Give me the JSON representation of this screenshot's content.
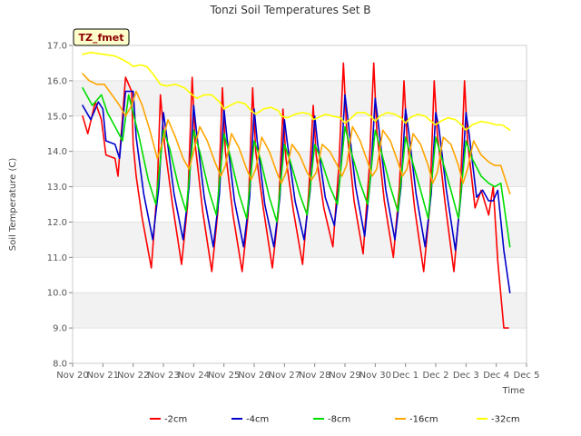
{
  "chart_data": {
    "type": "line",
    "title": "Tonzi Soil Temperatures Set B",
    "xlabel": "Time",
    "ylabel": "Soil Temperature (C)",
    "site_label": "TZ_fmet",
    "xlim": [
      0,
      15
    ],
    "ylim": [
      8.0,
      17.0
    ],
    "grid": "horizontal bands",
    "legend_position": "bottom-center",
    "xticks": [
      {
        "x": 0,
        "label": "Nov 20"
      },
      {
        "x": 1,
        "label": "Nov 21"
      },
      {
        "x": 2,
        "label": "Nov 22"
      },
      {
        "x": 3,
        "label": "Nov 23"
      },
      {
        "x": 4,
        "label": "Nov 24"
      },
      {
        "x": 5,
        "label": "Nov 25"
      },
      {
        "x": 6,
        "label": "Nov 26"
      },
      {
        "x": 7,
        "label": "Nov 27"
      },
      {
        "x": 8,
        "label": "Nov 28"
      },
      {
        "x": 9,
        "label": "Nov 29"
      },
      {
        "x": 10,
        "label": "Nov 30"
      },
      {
        "x": 11,
        "label": "Dec 1"
      },
      {
        "x": 12,
        "label": "Dec 2"
      },
      {
        "x": 13,
        "label": "Dec 3"
      },
      {
        "x": 14,
        "label": "Dec 4"
      },
      {
        "x": 15,
        "label": "Dec 5"
      }
    ],
    "yticks": [
      {
        "y": 8.0,
        "label": "8.0"
      },
      {
        "y": 9.0,
        "label": "9.0"
      },
      {
        "y": 10.0,
        "label": "10.0"
      },
      {
        "y": 11.0,
        "label": "11.0"
      },
      {
        "y": 12.0,
        "label": "12.0"
      },
      {
        "y": 13.0,
        "label": "13.0"
      },
      {
        "y": 14.0,
        "label": "14.0"
      },
      {
        "y": 15.0,
        "label": "15.0"
      },
      {
        "y": 16.0,
        "label": "16.0"
      },
      {
        "y": 17.0,
        "label": "17.0"
      }
    ],
    "series": [
      {
        "name": "-2cm",
        "color": "#ff0000",
        "x": [
          0.33,
          0.5,
          0.75,
          0.95,
          1.1,
          1.4,
          1.5,
          1.75,
          1.95,
          2.0,
          2.1,
          2.3,
          2.6,
          2.8,
          2.9,
          3.05,
          3.3,
          3.6,
          3.8,
          3.95,
          4.05,
          4.3,
          4.6,
          4.8,
          4.95,
          5.05,
          5.3,
          5.6,
          5.8,
          5.95,
          6.05,
          6.3,
          6.6,
          6.8,
          6.95,
          7.05,
          7.3,
          7.6,
          7.8,
          7.95,
          8.05,
          8.3,
          8.6,
          8.8,
          8.95,
          9.05,
          9.3,
          9.6,
          9.8,
          9.95,
          10.05,
          10.3,
          10.6,
          10.8,
          10.95,
          11.05,
          11.3,
          11.6,
          11.8,
          11.95,
          12.05,
          12.3,
          12.6,
          12.8,
          12.95,
          13.05,
          13.3,
          13.5,
          13.75,
          13.9,
          14.05,
          14.25,
          14.4
        ],
        "values": [
          15.0,
          14.5,
          15.4,
          14.9,
          13.9,
          13.8,
          13.3,
          16.1,
          15.7,
          14.2,
          13.3,
          12.1,
          10.7,
          13.0,
          15.6,
          14.1,
          12.5,
          10.8,
          12.5,
          16.1,
          14.2,
          12.3,
          10.6,
          12.3,
          15.8,
          14.0,
          12.2,
          10.6,
          12.2,
          15.8,
          14.0,
          12.4,
          10.7,
          12.3,
          15.2,
          13.8,
          12.3,
          10.8,
          12.8,
          15.3,
          13.9,
          12.4,
          11.3,
          13.6,
          16.5,
          14.7,
          12.6,
          11.1,
          13.5,
          16.5,
          14.6,
          12.6,
          11.0,
          13.0,
          16.0,
          14.4,
          12.4,
          10.6,
          12.4,
          16.0,
          14.5,
          12.6,
          10.6,
          12.6,
          16.0,
          14.3,
          12.4,
          12.9,
          12.2,
          13.0,
          10.9,
          9.0,
          9.0
        ]
      },
      {
        "name": "-4cm",
        "color": "#0000cc",
        "x": [
          0.33,
          0.6,
          0.85,
          1.0,
          1.1,
          1.4,
          1.55,
          1.75,
          2.0,
          2.1,
          2.35,
          2.65,
          2.85,
          3.0,
          3.1,
          3.35,
          3.65,
          3.85,
          4.0,
          4.1,
          4.35,
          4.65,
          4.85,
          5.0,
          5.1,
          5.35,
          5.65,
          5.85,
          6.0,
          6.1,
          6.35,
          6.65,
          6.85,
          7.0,
          7.1,
          7.35,
          7.65,
          7.85,
          8.0,
          8.1,
          8.35,
          8.65,
          8.85,
          9.0,
          9.1,
          9.35,
          9.65,
          9.85,
          10.0,
          10.1,
          10.35,
          10.65,
          10.85,
          11.0,
          11.1,
          11.35,
          11.65,
          11.85,
          12.0,
          12.1,
          12.35,
          12.65,
          12.85,
          13.0,
          13.1,
          13.35,
          13.55,
          13.75,
          13.9,
          14.05,
          14.25,
          14.45
        ],
        "values": [
          15.3,
          14.9,
          15.4,
          15.2,
          14.3,
          14.2,
          13.8,
          15.7,
          15.7,
          14.4,
          12.8,
          11.5,
          13.0,
          15.1,
          14.5,
          12.8,
          11.5,
          13.0,
          15.3,
          14.5,
          12.7,
          11.3,
          12.8,
          15.2,
          14.4,
          12.6,
          11.3,
          12.7,
          15.2,
          14.3,
          12.5,
          11.3,
          12.7,
          14.9,
          14.2,
          12.6,
          11.5,
          12.9,
          15.0,
          14.2,
          12.7,
          11.9,
          13.4,
          15.6,
          14.9,
          13.0,
          11.6,
          13.3,
          15.5,
          14.8,
          12.9,
          11.5,
          13.0,
          15.2,
          14.6,
          12.8,
          11.3,
          12.8,
          15.1,
          14.7,
          12.9,
          11.2,
          12.9,
          15.1,
          14.5,
          12.7,
          12.9,
          12.6,
          12.6,
          12.9,
          11.2,
          10.0
        ]
      },
      {
        "name": "-8cm",
        "color": "#00dd00",
        "x": [
          0.33,
          0.65,
          0.95,
          1.15,
          1.4,
          1.65,
          1.85,
          2.2,
          2.5,
          2.75,
          3.0,
          3.2,
          3.5,
          3.75,
          4.0,
          4.2,
          4.5,
          4.75,
          5.0,
          5.2,
          5.5,
          5.75,
          6.0,
          6.2,
          6.5,
          6.75,
          7.0,
          7.2,
          7.5,
          7.75,
          8.0,
          8.2,
          8.5,
          8.75,
          9.0,
          9.2,
          9.5,
          9.75,
          10.0,
          10.2,
          10.5,
          10.75,
          11.0,
          11.2,
          11.5,
          11.75,
          12.0,
          12.2,
          12.5,
          12.75,
          13.0,
          13.2,
          13.5,
          13.75,
          13.95,
          14.15,
          14.45
        ],
        "values": [
          15.8,
          15.3,
          15.6,
          15.1,
          14.7,
          14.3,
          15.6,
          14.4,
          13.2,
          12.5,
          14.6,
          14.1,
          13.0,
          12.3,
          14.6,
          14.0,
          12.9,
          12.2,
          14.5,
          13.9,
          12.8,
          12.1,
          14.3,
          13.8,
          12.7,
          12.0,
          14.2,
          13.7,
          12.8,
          12.2,
          14.2,
          13.8,
          13.0,
          12.5,
          14.7,
          14.0,
          13.1,
          12.5,
          14.6,
          14.0,
          13.0,
          12.3,
          14.4,
          13.8,
          12.9,
          12.1,
          14.4,
          13.8,
          12.9,
          12.1,
          14.3,
          13.8,
          13.3,
          13.1,
          13.0,
          13.1,
          11.3
        ]
      },
      {
        "name": "-16cm",
        "color": "#ffa500",
        "x": [
          0.33,
          0.55,
          0.8,
          1.05,
          1.3,
          1.55,
          1.75,
          1.95,
          2.1,
          2.3,
          2.55,
          2.8,
          2.95,
          3.15,
          3.4,
          3.65,
          3.85,
          4.0,
          4.2,
          4.45,
          4.7,
          4.9,
          5.05,
          5.25,
          5.5,
          5.75,
          5.9,
          6.05,
          6.25,
          6.5,
          6.75,
          6.9,
          7.05,
          7.25,
          7.5,
          7.75,
          7.9,
          8.05,
          8.25,
          8.5,
          8.75,
          8.9,
          9.05,
          9.25,
          9.5,
          9.75,
          9.9,
          10.05,
          10.25,
          10.5,
          10.75,
          10.9,
          11.05,
          11.25,
          11.5,
          11.75,
          11.9,
          12.05,
          12.25,
          12.5,
          12.75,
          12.9,
          13.05,
          13.25,
          13.5,
          13.75,
          13.95,
          14.15,
          14.45
        ],
        "values": [
          16.2,
          16.0,
          15.9,
          15.9,
          15.6,
          15.3,
          15.0,
          15.3,
          15.7,
          15.3,
          14.6,
          13.8,
          14.2,
          14.9,
          14.4,
          13.8,
          13.5,
          14.0,
          14.7,
          14.3,
          13.7,
          13.3,
          13.6,
          14.5,
          14.1,
          13.5,
          13.2,
          13.5,
          14.4,
          14.0,
          13.4,
          13.1,
          13.4,
          14.2,
          13.9,
          13.4,
          13.2,
          13.4,
          14.2,
          14.0,
          13.6,
          13.3,
          13.6,
          14.7,
          14.3,
          13.7,
          13.3,
          13.5,
          14.6,
          14.3,
          13.7,
          13.3,
          13.5,
          14.5,
          14.2,
          13.6,
          13.1,
          13.4,
          14.4,
          14.2,
          13.6,
          13.1,
          13.5,
          14.3,
          13.9,
          13.7,
          13.6,
          13.6,
          12.8
        ]
      },
      {
        "name": "-32cm",
        "color": "#ffff00",
        "x": [
          0.33,
          0.6,
          1.0,
          1.4,
          1.65,
          1.85,
          2.0,
          2.25,
          2.45,
          2.65,
          2.9,
          3.1,
          3.4,
          3.7,
          3.95,
          4.1,
          4.35,
          4.6,
          4.85,
          5.0,
          5.2,
          5.45,
          5.7,
          5.9,
          6.05,
          6.3,
          6.55,
          6.8,
          6.9,
          7.1,
          7.35,
          7.6,
          7.85,
          7.95,
          8.1,
          8.35,
          8.6,
          8.85,
          9.0,
          9.15,
          9.4,
          9.65,
          9.85,
          10.0,
          10.15,
          10.4,
          10.65,
          10.85,
          11.0,
          11.15,
          11.4,
          11.65,
          11.85,
          12.0,
          12.15,
          12.4,
          12.65,
          12.85,
          13.0,
          13.2,
          13.5,
          13.8,
          14.0,
          14.2,
          14.45
        ],
        "values": [
          16.75,
          16.8,
          16.75,
          16.7,
          16.6,
          16.5,
          16.4,
          16.45,
          16.4,
          16.2,
          15.9,
          15.85,
          15.9,
          15.8,
          15.6,
          15.5,
          15.6,
          15.6,
          15.4,
          15.2,
          15.3,
          15.4,
          15.35,
          15.15,
          15.05,
          15.2,
          15.25,
          15.15,
          15.0,
          14.95,
          15.05,
          15.1,
          15.05,
          14.9,
          14.95,
          15.05,
          15.0,
          14.95,
          14.8,
          14.9,
          15.1,
          15.1,
          15.0,
          14.85,
          15.0,
          15.1,
          15.05,
          14.95,
          14.8,
          14.95,
          15.05,
          15.0,
          14.85,
          14.75,
          14.85,
          14.95,
          14.9,
          14.75,
          14.6,
          14.75,
          14.85,
          14.8,
          14.75,
          14.75,
          14.6
        ]
      }
    ]
  }
}
